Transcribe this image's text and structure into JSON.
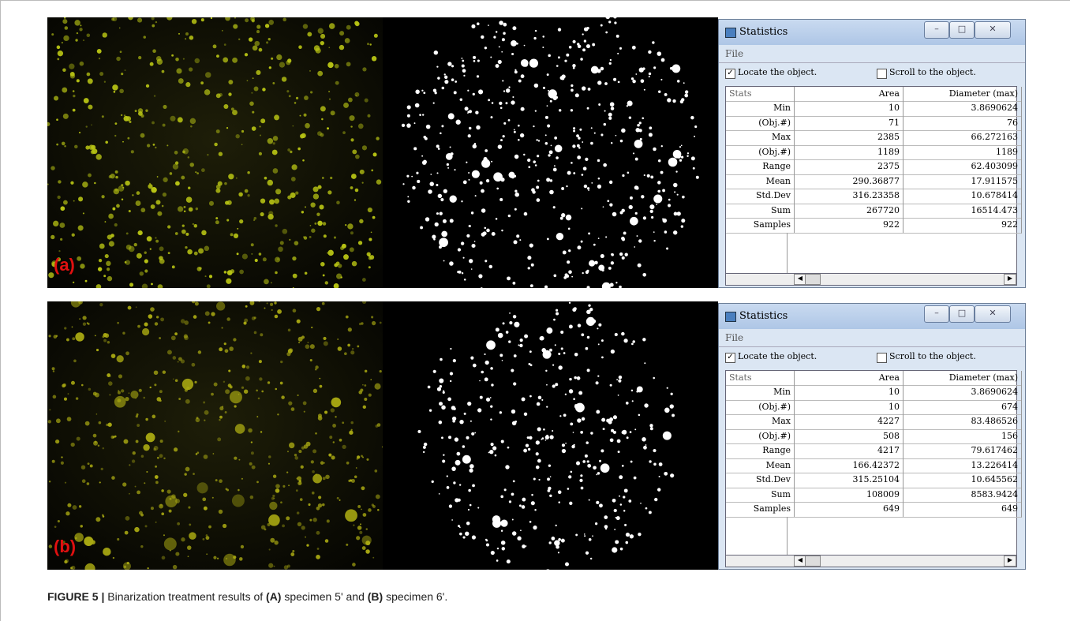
{
  "panels": [
    {
      "label": "(a)",
      "window": {
        "title": "Statistics",
        "menu": [
          "File"
        ],
        "checkboxes": [
          {
            "label": "Locate the object.",
            "checked": true
          },
          {
            "label": "Scroll to the object.",
            "checked": false
          }
        ],
        "columns": [
          "Stats",
          "Area",
          "Diameter (max)"
        ],
        "rows": [
          [
            "Min",
            "10",
            "3.8690624"
          ],
          [
            "(Obj.#)",
            "71",
            "76"
          ],
          [
            "Max",
            "2385",
            "66.272163"
          ],
          [
            "(Obj.#)",
            "1189",
            "1189"
          ],
          [
            "Range",
            "2375",
            "62.403099"
          ],
          [
            "Mean",
            "290.36877",
            "17.911575"
          ],
          [
            "Std.Dev",
            "316.23358",
            "10.678414"
          ],
          [
            "Sum",
            "267720",
            "16514.473"
          ],
          [
            "Samples",
            "922",
            "922"
          ]
        ]
      }
    },
    {
      "label": "(b)",
      "window": {
        "title": "Statistics",
        "menu": [
          "File"
        ],
        "checkboxes": [
          {
            "label": "Locate the object.",
            "checked": true
          },
          {
            "label": "Scroll to the object.",
            "checked": false
          }
        ],
        "columns": [
          "Stats",
          "Area",
          "Diameter (max)"
        ],
        "rows": [
          [
            "Min",
            "10",
            "3.8690624"
          ],
          [
            "(Obj.#)",
            "10",
            "674"
          ],
          [
            "Max",
            "4227",
            "83.486526"
          ],
          [
            "(Obj.#)",
            "508",
            "156"
          ],
          [
            "Range",
            "4217",
            "79.617462"
          ],
          [
            "Mean",
            "166.42372",
            "13.226414"
          ],
          [
            "Std.Dev",
            "315.25104",
            "10.645562"
          ],
          [
            "Sum",
            "108009",
            "8583.9424"
          ],
          [
            "Samples",
            "649",
            "649"
          ]
        ]
      }
    }
  ],
  "caption": [
    {
      "text": "FIGURE 5 |",
      "bold": true
    },
    {
      "text": " Binarization treatment results of ",
      "bold": false
    },
    {
      "text": "(A)",
      "bold": true
    },
    {
      "text": " specimen 5' and ",
      "bold": false
    },
    {
      "text": "(B)",
      "bold": true
    },
    {
      "text": " specimen 6'.",
      "bold": false
    }
  ]
}
